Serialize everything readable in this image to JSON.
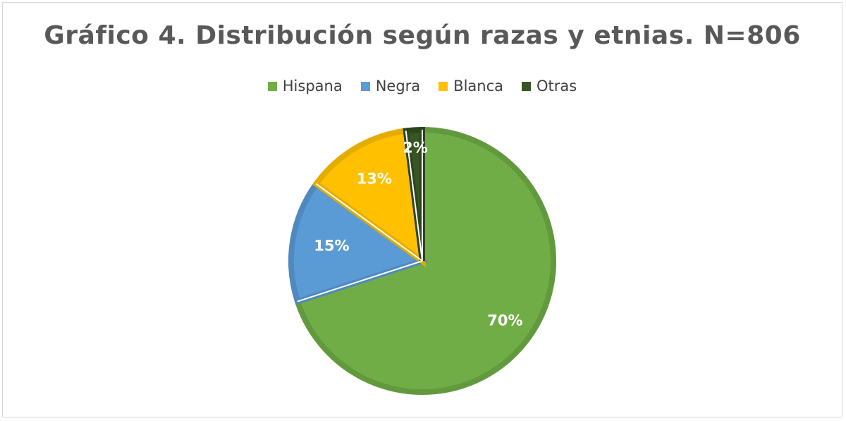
{
  "chart_data": {
    "type": "pie",
    "title": "Gráfico 4. Distribución según razas y etnias. N=806",
    "legend_position": "top",
    "slices": [
      {
        "name": "Hispana",
        "value": 70,
        "label": "70%",
        "color": "#70ad47",
        "border": "#62993d"
      },
      {
        "name": "Negra",
        "value": 15,
        "label": "15%",
        "color": "#5b9bd5",
        "border": "#4f89be"
      },
      {
        "name": "Blanca",
        "value": 13,
        "label": "13%",
        "color": "#ffc000",
        "border": "#e5ac00"
      },
      {
        "name": "Otras",
        "value": 2,
        "label": "2%",
        "color": "#375623",
        "border": "#2c451c"
      }
    ]
  }
}
